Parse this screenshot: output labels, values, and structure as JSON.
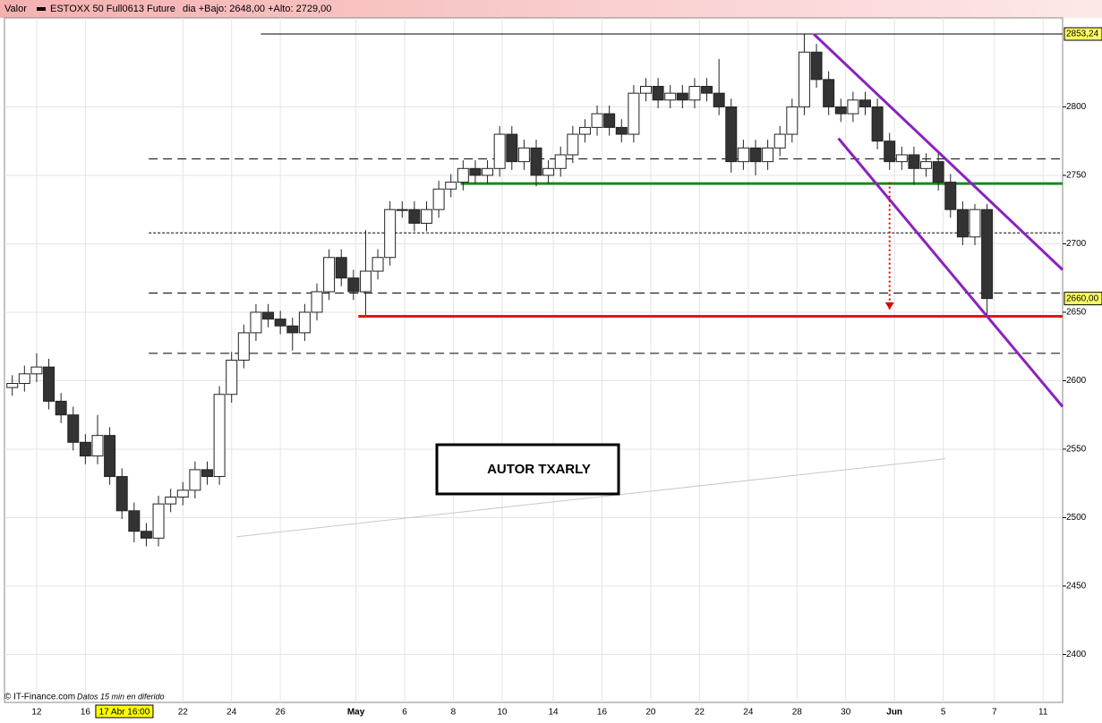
{
  "chart_data": {
    "type": "candlestick",
    "header_label": "Valor",
    "series_name": "ESTOXX 50 Full0613 Future",
    "subtitle": "dia +Bajo: 2648,00 +Alto: 2729,00",
    "footer": "© IT-Finance.com",
    "footer_note": "Datos 15 min en diferido",
    "annotation": "AUTOR TXARLY",
    "cursor": {
      "value": 3.6,
      "label": "17 Abr 16:00"
    },
    "xlim": [
      -1.32,
      42.1
    ],
    "ylim": [
      2365,
      2865
    ],
    "grid": true,
    "yticks": [
      2400,
      2450,
      2500,
      2550,
      2600,
      2650,
      2700,
      2750,
      2800
    ],
    "price_labels": [
      {
        "value": 2853.24,
        "label": "2853,24"
      },
      {
        "value": 2660,
        "label": "2660,00"
      }
    ],
    "xticks": [
      {
        "value": 0,
        "label": "12"
      },
      {
        "value": 2,
        "label": "16"
      },
      {
        "value": 6,
        "label": "22"
      },
      {
        "value": 8,
        "label": "24"
      },
      {
        "value": 10,
        "label": "26"
      },
      {
        "value": 13.1,
        "label": "May"
      },
      {
        "value": 15.1,
        "label": "6"
      },
      {
        "value": 17.1,
        "label": "8"
      },
      {
        "value": 19.1,
        "label": "10"
      },
      {
        "value": 21.2,
        "label": "14"
      },
      {
        "value": 23.2,
        "label": "16"
      },
      {
        "value": 25.2,
        "label": "20"
      },
      {
        "value": 27.2,
        "label": "22"
      },
      {
        "value": 29.2,
        "label": "24"
      },
      {
        "value": 31.2,
        "label": "28"
      },
      {
        "value": 33.2,
        "label": "30"
      },
      {
        "value": 35.2,
        "label": "Jun"
      },
      {
        "value": 37.2,
        "label": "5"
      },
      {
        "value": 39.3,
        "label": "7"
      },
      {
        "value": 41.3,
        "label": "11"
      }
    ],
    "x": [
      -1,
      -0.5,
      0,
      0.5,
      1,
      1.5,
      2,
      2.5,
      3,
      3.5,
      4,
      4.5,
      5,
      5.5,
      6,
      6.5,
      7,
      7.5,
      8,
      8.5,
      9,
      9.5,
      10,
      10.5,
      11,
      11.5,
      12,
      12.5,
      13,
      13.5,
      14,
      14.5,
      15,
      15.5,
      16,
      16.5,
      17,
      17.5,
      18,
      18.5,
      19,
      19.5,
      20,
      20.5,
      21,
      21.5,
      22,
      22.5,
      23,
      23.5,
      24,
      24.5,
      25,
      25.5,
      26,
      26.5,
      27,
      27.5,
      28,
      28.5,
      29,
      29.5,
      30,
      30.5,
      31,
      31.5,
      32,
      32.5,
      33,
      33.5,
      34,
      34.5,
      35,
      35.5,
      36,
      36.5,
      37,
      37.5,
      38,
      38.5,
      39
    ],
    "open": [
      2595,
      2598,
      2605,
      2610,
      2585,
      2575,
      2555,
      2545,
      2560,
      2530,
      2505,
      2490,
      2485,
      2510,
      2515,
      2520,
      2535,
      2530,
      2590,
      2615,
      2635,
      2650,
      2645,
      2640,
      2635,
      2650,
      2665,
      2690,
      2675,
      2665,
      2680,
      2690,
      2725,
      2725,
      2715,
      2725,
      2740,
      2745,
      2755,
      2750,
      2755,
      2780,
      2760,
      2770,
      2750,
      2755,
      2765,
      2780,
      2785,
      2795,
      2785,
      2780,
      2810,
      2815,
      2805,
      2810,
      2805,
      2815,
      2810,
      2800,
      2760,
      2770,
      2760,
      2770,
      2780,
      2800,
      2840,
      2820,
      2800,
      2795,
      2805,
      2800,
      2775,
      2760,
      2765,
      2755,
      2760,
      2745,
      2725,
      2705,
      2725
    ],
    "high": [
      2604,
      2611,
      2620,
      2616,
      2591,
      2581,
      2561,
      2575,
      2566,
      2536,
      2511,
      2496,
      2516,
      2521,
      2526,
      2541,
      2541,
      2596,
      2621,
      2641,
      2656,
      2656,
      2651,
      2646,
      2656,
      2671,
      2696,
      2696,
      2681,
      2710,
      2696,
      2731,
      2731,
      2731,
      2731,
      2746,
      2751,
      2761,
      2761,
      2761,
      2786,
      2786,
      2776,
      2776,
      2761,
      2771,
      2786,
      2791,
      2801,
      2801,
      2791,
      2816,
      2821,
      2821,
      2816,
      2816,
      2821,
      2821,
      2835,
      2806,
      2776,
      2776,
      2776,
      2786,
      2806,
      2853,
      2846,
      2826,
      2806,
      2811,
      2811,
      2806,
      2781,
      2771,
      2771,
      2766,
      2766,
      2751,
      2731,
      2729,
      2729
    ],
    "low": [
      2589,
      2592,
      2599,
      2579,
      2569,
      2549,
      2539,
      2539,
      2524,
      2499,
      2482,
      2479,
      2479,
      2504,
      2509,
      2514,
      2524,
      2524,
      2584,
      2609,
      2629,
      2639,
      2634,
      2622,
      2629,
      2644,
      2659,
      2669,
      2659,
      2648,
      2674,
      2684,
      2719,
      2709,
      2709,
      2719,
      2734,
      2739,
      2744,
      2744,
      2749,
      2754,
      2754,
      2742,
      2744,
      2749,
      2759,
      2774,
      2779,
      2779,
      2774,
      2774,
      2804,
      2799,
      2799,
      2799,
      2799,
      2804,
      2794,
      2752,
      2754,
      2750,
      2754,
      2764,
      2774,
      2794,
      2814,
      2794,
      2789,
      2789,
      2794,
      2769,
      2754,
      2754,
      2743,
      2749,
      2739,
      2719,
      2699,
      2699,
      2648
    ],
    "close": [
      2598,
      2605,
      2610,
      2585,
      2575,
      2555,
      2545,
      2560,
      2530,
      2505,
      2490,
      2485,
      2510,
      2515,
      2520,
      2535,
      2530,
      2590,
      2615,
      2635,
      2650,
      2645,
      2640,
      2635,
      2650,
      2665,
      2690,
      2675,
      2665,
      2680,
      2690,
      2725,
      2725,
      2715,
      2725,
      2740,
      2745,
      2755,
      2750,
      2755,
      2780,
      2760,
      2770,
      2750,
      2755,
      2765,
      2780,
      2785,
      2795,
      2785,
      2780,
      2810,
      2815,
      2805,
      2810,
      2805,
      2815,
      2810,
      2800,
      2760,
      2770,
      2760,
      2770,
      2780,
      2800,
      2840,
      2820,
      2800,
      2795,
      2805,
      2800,
      2775,
      2760,
      2765,
      2755,
      2760,
      2745,
      2725,
      2705,
      2725,
      2660
    ],
    "lines": [
      {
        "color": "#000000",
        "width": 1,
        "dash": "none",
        "x": [
          9.2,
          42.1
        ],
        "y": [
          2853.24,
          2853.24
        ]
      },
      {
        "color": "#000000",
        "width": 1,
        "dash": "10 6",
        "x": [
          4.6,
          42.1
        ],
        "y": [
          2762,
          2762
        ]
      },
      {
        "color": "#000000",
        "width": 1,
        "dash": "3 2",
        "x": [
          4.6,
          42.1
        ],
        "y": [
          2708,
          2708
        ]
      },
      {
        "color": "#000000",
        "width": 1,
        "dash": "10 6",
        "x": [
          4.6,
          42.1
        ],
        "y": [
          2664,
          2664
        ]
      },
      {
        "color": "#000000",
        "width": 1,
        "dash": "10 6",
        "x": [
          4.6,
          42.1
        ],
        "y": [
          2620,
          2620
        ]
      },
      {
        "color": "#1a8a1a",
        "width": 3,
        "dash": "none",
        "x": [
          17.4,
          42.1
        ],
        "y": [
          2744,
          2744
        ]
      },
      {
        "color": "#ee1111",
        "width": 3,
        "dash": "none",
        "x": [
          13.2,
          42.1
        ],
        "y": [
          2647,
          2647
        ]
      },
      {
        "color": "#8a22c0",
        "width": 3,
        "dash": "none",
        "x": [
          31.9,
          42.1
        ],
        "y": [
          2853,
          2681
        ]
      },
      {
        "color": "#8a22c0",
        "width": 3,
        "dash": "none",
        "x": [
          32.9,
          42.1
        ],
        "y": [
          2777,
          2581
        ]
      },
      {
        "color": "#c8c8c8",
        "width": 1,
        "dash": "none",
        "x": [
          8.2,
          37.3
        ],
        "y": [
          2486,
          2543
        ]
      },
      {
        "color": "#dd0000",
        "width": 2,
        "dash": "2 3",
        "x": [
          35.0,
          35.0
        ],
        "y": [
          2745,
          2652
        ]
      }
    ]
  }
}
